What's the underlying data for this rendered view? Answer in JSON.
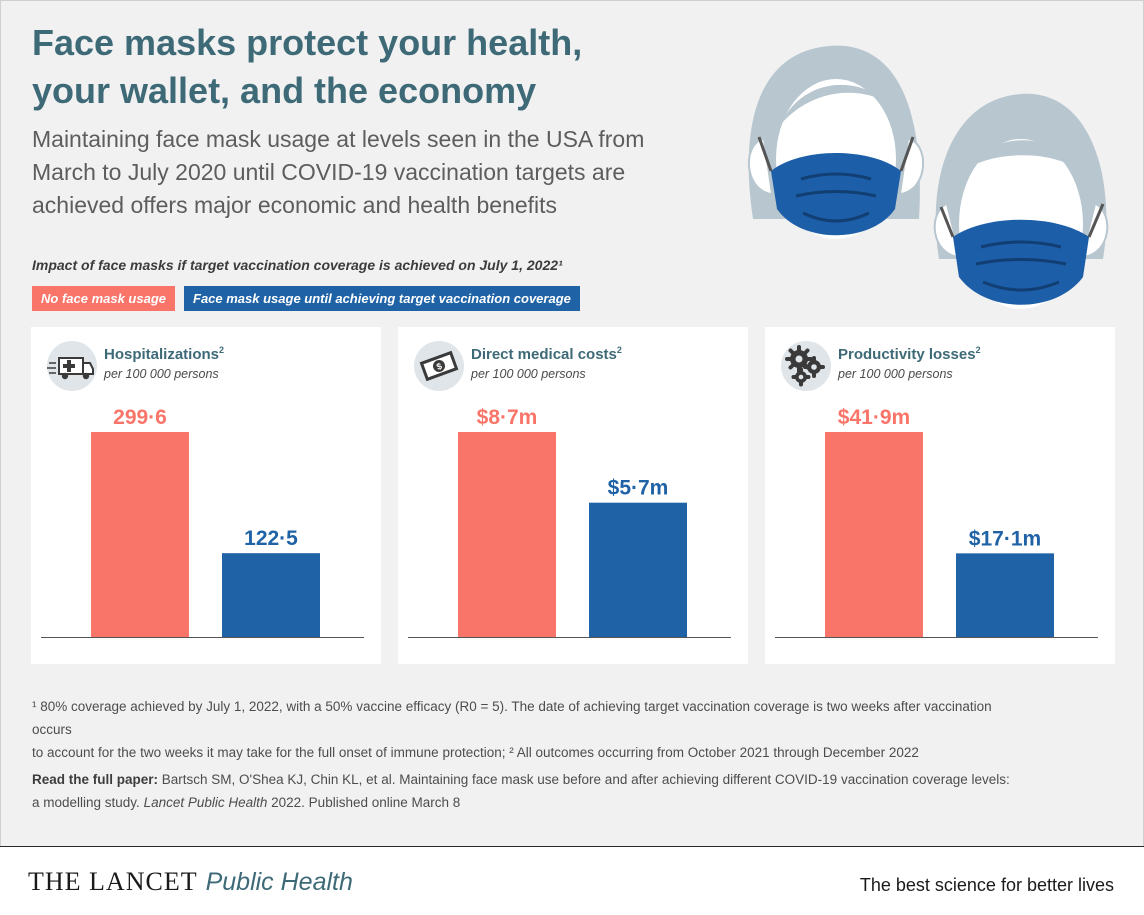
{
  "header": {
    "title_line1": "Face masks protect your health,",
    "title_line2": "your wallet, and the economy",
    "subtitle": "Maintaining face mask usage at levels seen in the USA from March to July 2020 until COVID-19 vaccination targets are achieved offers major economic and health benefits"
  },
  "impact_label": "Impact of face masks if target vaccination coverage is achieved on July 1, 2022¹",
  "legend": {
    "no_mask": "No face mask usage",
    "mask": "Face mask usage until achieving target vaccination coverage"
  },
  "colors": {
    "no_mask": "#f9756a",
    "mask": "#1f63a6",
    "title": "#3e6a78"
  },
  "panels": [
    {
      "title": "Hospitalizations",
      "sup": "2",
      "unit": "per 100 000 persons",
      "icon": "ambulance-icon"
    },
    {
      "title": "Direct medical costs",
      "sup": "2",
      "unit": "per 100 000 persons",
      "icon": "money-icon"
    },
    {
      "title": "Productivity losses",
      "sup": "2",
      "unit": "per 100 000 persons",
      "icon": "gears-icon"
    }
  ],
  "chart_data": [
    {
      "type": "bar",
      "title": "Hospitalizations",
      "categories": [
        "No face mask usage",
        "Face mask usage until achieving target vaccination coverage"
      ],
      "values": [
        299.6,
        122.5
      ],
      "labels": [
        "299·6",
        "122·5"
      ]
    },
    {
      "type": "bar",
      "title": "Direct medical costs",
      "categories": [
        "No face mask usage",
        "Face mask usage until achieving target vaccination coverage"
      ],
      "values": [
        8.7,
        5.7
      ],
      "labels": [
        "$8·7m",
        "$5·7m"
      ]
    },
    {
      "type": "bar",
      "title": "Productivity losses",
      "categories": [
        "No face mask usage",
        "Face mask usage until achieving target vaccination coverage"
      ],
      "values": [
        41.9,
        17.1
      ],
      "labels": [
        "$41·9m",
        "$17·1m"
      ]
    }
  ],
  "footnote": {
    "line1": "¹ 80% coverage achieved by July 1, 2022, with a 50% vaccine efficacy (R0 = 5). The date of achieving target vaccination coverage is two weeks after vaccination occurs",
    "line2": "to account for the two weeks it may take for the full onset of immune protection; ² All outcomes occurring from October 2021 through December 2022"
  },
  "citation": {
    "lead": "Read the full paper:",
    "text1": " Bartsch SM, O'Shea KJ, Chin KL, et al. Maintaining face mask use before and after achieving different COVID-19 vaccination coverage levels:",
    "text2_a": "a modelling study. ",
    "journal": "Lancet Public Health",
    "text2_b": " 2022. Published online March 8"
  },
  "footer": {
    "brand_main": "THE LANCET",
    "brand_sub": "Public Health",
    "tagline": "The best science for better lives"
  }
}
